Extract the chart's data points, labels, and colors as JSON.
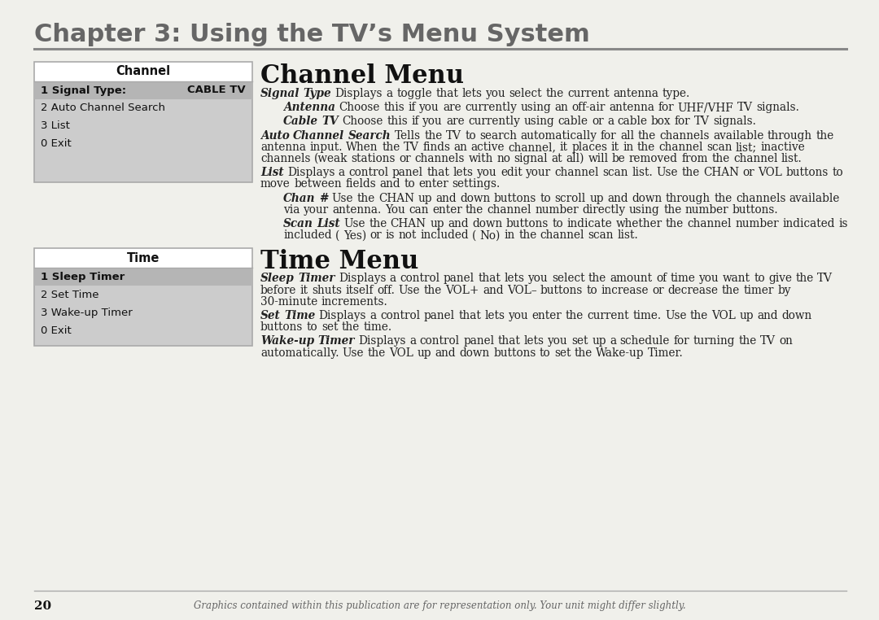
{
  "bg_color": "#f0f0eb",
  "title_chapter": "Chapter 3: Using the TV’s Menu System",
  "title_chapter_color": "#666666",
  "separator_color": "#888888",
  "channel_box_header_bg": "#ffffff",
  "channel_box_body_bg": "#cccccc",
  "channel_box_border": "#aaaaaa",
  "channel_box_title": "Channel",
  "channel_box_row1_left": "1 Signal Type:",
  "channel_box_row1_right": "CABLE TV",
  "channel_box_other": [
    "2 Auto Channel Search",
    "3 List",
    "0 Exit"
  ],
  "time_box_title": "Time",
  "time_box_row1": "1 Sleep Timer",
  "time_box_other": [
    "2 Set Time",
    "3 Wake-up Timer",
    "0 Exit"
  ],
  "section1_title": "Channel Menu",
  "section2_title": "Time Menu",
  "body_text_color": "#222222",
  "footer_page": "20",
  "footer_note": "Graphics contained within this publication are for representation only. Your unit might differ slightly.",
  "channel_paragraphs": [
    {
      "indent": false,
      "bold_lead": "Signal Type",
      "rest": "   Displays a toggle that lets you select the current antenna type."
    },
    {
      "indent": true,
      "bold_lead": "Antenna",
      "rest": "   Choose this if you are currently using an off-air antenna for UHF/VHF TV signals."
    },
    {
      "indent": true,
      "bold_lead": "Cable TV",
      "rest": "   Choose this if you are currently using cable or a cable box for TV signals."
    },
    {
      "indent": false,
      "bold_lead": "Auto Channel Search",
      "rest": "   Tells the TV to search automatically for all the channels available through the antenna input. When the TV finds an active channel, it places it in the channel scan list; inactive channels (weak stations or channels with no signal at all) will be removed from the channel list."
    },
    {
      "indent": false,
      "bold_lead": "List",
      "rest": "   Displays a control panel that lets you edit your channel scan list. Use the CHAN or VOL buttons to move between fields and to enter settings."
    },
    {
      "indent": true,
      "bold_lead": "Chan #",
      "rest": "   Use the CHAN up and down buttons to scroll up and down through the channels available via your antenna. You can enter the channel number directly using the number buttons."
    },
    {
      "indent": true,
      "bold_lead": "Scan List",
      "rest": "   Use the CHAN up and down buttons to indicate whether the channel number indicated is included ( Yes) or is not included ( No) in the channel scan list."
    }
  ],
  "time_paragraphs": [
    {
      "indent": false,
      "bold_lead": "Sleep Timer",
      "rest": "   Displays a control panel that lets you select the amount of time you want to give the TV before it shuts itself off. Use the VOL+ and VOL– buttons to increase or decrease the timer by 30-minute increments."
    },
    {
      "indent": false,
      "bold_lead": "Set Time",
      "rest": "   Displays a control panel that lets you enter the current time. Use the VOL up and down buttons to set the time."
    },
    {
      "indent": false,
      "bold_lead": "Wake-up Timer",
      "rest": "   Displays a control panel that lets you set up a schedule for turning the TV on automatically. Use the VOL up and down buttons to set the Wake-up Timer."
    }
  ]
}
